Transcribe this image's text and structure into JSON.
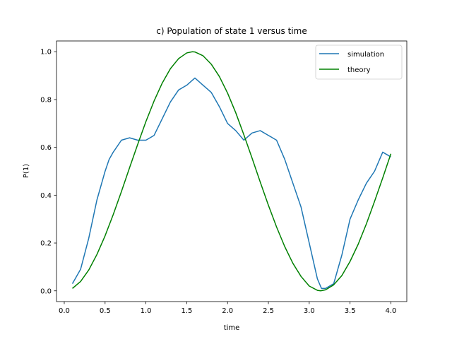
{
  "chart_data": {
    "type": "line",
    "title": "c) Population of state 1 versus time",
    "xlabel": "time",
    "ylabel": "P(1)",
    "xlim": [
      -0.095,
      4.195
    ],
    "ylim": [
      -0.045,
      1.045
    ],
    "xticks": [
      0.0,
      0.5,
      1.0,
      1.5,
      2.0,
      2.5,
      3.0,
      3.5,
      4.0
    ],
    "xtick_labels": [
      "0.0",
      "0.5",
      "1.0",
      "1.5",
      "2.0",
      "2.5",
      "3.0",
      "3.5",
      "4.0"
    ],
    "yticks": [
      0.0,
      0.2,
      0.4,
      0.6,
      0.8,
      1.0
    ],
    "ytick_labels": [
      "0.0",
      "0.2",
      "0.4",
      "0.6",
      "0.8",
      "1.0"
    ],
    "grid": false,
    "legend_position": "top-right",
    "series": [
      {
        "name": "simulation",
        "color": "#1f77b4",
        "x": [
          0.1,
          0.2,
          0.3,
          0.35,
          0.4,
          0.5,
          0.55,
          0.6,
          0.7,
          0.8,
          0.9,
          1.0,
          1.1,
          1.2,
          1.3,
          1.4,
          1.5,
          1.6,
          1.7,
          1.8,
          1.9,
          2.0,
          2.1,
          2.2,
          2.3,
          2.4,
          2.5,
          2.6,
          2.7,
          2.8,
          2.9,
          3.0,
          3.1,
          3.15,
          3.2,
          3.3,
          3.4,
          3.5,
          3.6,
          3.7,
          3.8,
          3.9,
          4.0
        ],
        "y": [
          0.03,
          0.09,
          0.22,
          0.3,
          0.38,
          0.5,
          0.55,
          0.58,
          0.63,
          0.64,
          0.63,
          0.63,
          0.65,
          0.72,
          0.79,
          0.84,
          0.86,
          0.89,
          0.86,
          0.83,
          0.77,
          0.7,
          0.67,
          0.63,
          0.66,
          0.67,
          0.65,
          0.63,
          0.55,
          0.45,
          0.35,
          0.2,
          0.05,
          0.01,
          0.01,
          0.03,
          0.15,
          0.3,
          0.38,
          0.45,
          0.5,
          0.58,
          0.56
        ]
      },
      {
        "name": "theory",
        "color": "#008000",
        "x": [
          0.1,
          0.2,
          0.3,
          0.4,
          0.5,
          0.6,
          0.7,
          0.8,
          0.9,
          1.0,
          1.1,
          1.2,
          1.3,
          1.4,
          1.5,
          1.57,
          1.6,
          1.7,
          1.8,
          1.9,
          2.0,
          2.1,
          2.2,
          2.3,
          2.4,
          2.5,
          2.6,
          2.7,
          2.8,
          2.9,
          3.0,
          3.1,
          3.14,
          3.2,
          3.3,
          3.4,
          3.5,
          3.6,
          3.7,
          3.8,
          3.9,
          4.0
        ],
        "y": [
          0.01,
          0.039,
          0.087,
          0.152,
          0.23,
          0.319,
          0.415,
          0.515,
          0.613,
          0.708,
          0.794,
          0.869,
          0.929,
          0.971,
          0.995,
          1.0,
          0.999,
          0.983,
          0.948,
          0.896,
          0.827,
          0.745,
          0.652,
          0.555,
          0.455,
          0.358,
          0.267,
          0.185,
          0.115,
          0.06,
          0.02,
          0.002,
          0.0,
          0.004,
          0.025,
          0.064,
          0.123,
          0.195,
          0.28,
          0.374,
          0.472,
          0.573
        ]
      }
    ]
  }
}
